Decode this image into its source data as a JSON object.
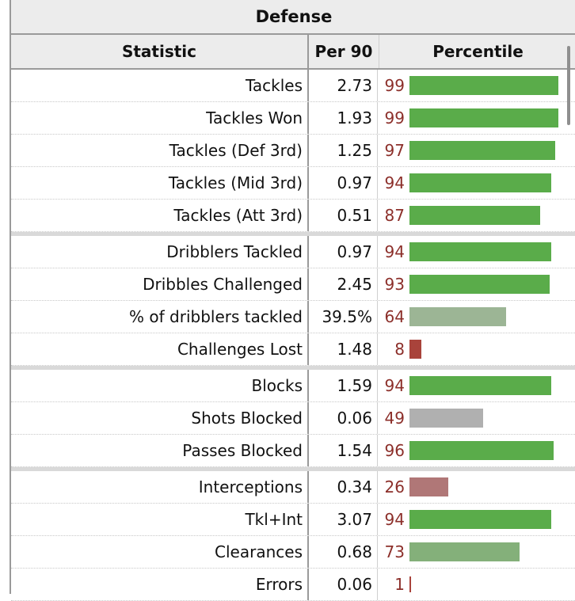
{
  "title": "Defense",
  "headers": {
    "statistic": "Statistic",
    "per90": "Per 90",
    "percentile": "Percentile"
  },
  "groups": [
    {
      "rows": [
        {
          "label": "Tackles",
          "per90": "2.73",
          "percentile": "99"
        },
        {
          "label": "Tackles Won",
          "per90": "1.93",
          "percentile": "99"
        },
        {
          "label": "Tackles (Def 3rd)",
          "per90": "1.25",
          "percentile": "97"
        },
        {
          "label": "Tackles (Mid 3rd)",
          "per90": "0.97",
          "percentile": "94"
        },
        {
          "label": "Tackles (Att 3rd)",
          "per90": "0.51",
          "percentile": "87"
        }
      ]
    },
    {
      "rows": [
        {
          "label": "Dribblers Tackled",
          "per90": "0.97",
          "percentile": "94"
        },
        {
          "label": "Dribbles Challenged",
          "per90": "2.45",
          "percentile": "93"
        },
        {
          "label": "% of dribblers tackled",
          "per90": "39.5%",
          "percentile": "64"
        },
        {
          "label": "Challenges Lost",
          "per90": "1.48",
          "percentile": "8"
        }
      ]
    },
    {
      "rows": [
        {
          "label": "Blocks",
          "per90": "1.59",
          "percentile": "94"
        },
        {
          "label": "Shots Blocked",
          "per90": "0.06",
          "percentile": "49"
        },
        {
          "label": "Passes Blocked",
          "per90": "1.54",
          "percentile": "96"
        }
      ]
    },
    {
      "rows": [
        {
          "label": "Interceptions",
          "per90": "0.34",
          "percentile": "26"
        },
        {
          "label": "Tkl+Int",
          "per90": "3.07",
          "percentile": "94"
        },
        {
          "label": "Clearances",
          "per90": "0.68",
          "percentile": "73"
        },
        {
          "label": "Errors",
          "per90": "0.06",
          "percentile": "1"
        }
      ]
    }
  ],
  "colors": {
    "high": "#5aac4a",
    "mid_high": "#84b07a",
    "mid_green": "#9cb595",
    "neutral": "#b0b0b0",
    "mid_low": "#b07777",
    "low": "#a9433b",
    "percentile_text": "#8c2f2a"
  }
}
